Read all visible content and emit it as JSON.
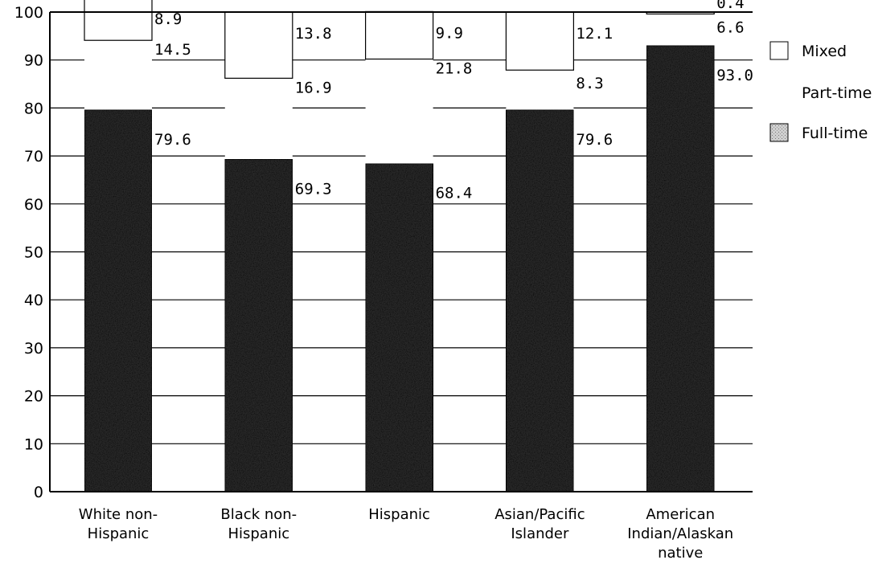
{
  "chart_data": {
    "type": "bar",
    "stacked": true,
    "categories": [
      [
        "White non-",
        "Hispanic"
      ],
      [
        "Black non-",
        "Hispanic"
      ],
      [
        "Hispanic"
      ],
      [
        "Asian/Pacific",
        "Islander"
      ],
      [
        "American",
        "Indian/Alaskan",
        "native"
      ]
    ],
    "series": [
      {
        "name": "Full-time",
        "values": [
          79.6,
          69.3,
          68.4,
          79.6,
          93.0
        ],
        "labels": [
          "79.6",
          "69.3",
          "68.4",
          "79.6",
          "93.0"
        ],
        "fill": "dark-speckled"
      },
      {
        "name": "Part-time",
        "values": [
          14.5,
          16.9,
          21.8,
          8.3,
          6.6
        ],
        "labels": [
          "14.5",
          "16.9",
          "21.8",
          "8.3",
          "6.6"
        ],
        "fill": "white-no-border"
      },
      {
        "name": "Mixed",
        "values": [
          8.9,
          13.8,
          9.9,
          12.1,
          0.4
        ],
        "labels": [
          "8.9",
          "13.8",
          "9.9",
          "12.1",
          "0.4"
        ],
        "fill": "white-outlined"
      }
    ],
    "legend_order": [
      "Mixed",
      "Part-time",
      "Full-time"
    ],
    "legend_position": "right",
    "ylim": [
      0,
      100
    ],
    "yticks": [
      0,
      10,
      20,
      30,
      40,
      50,
      60,
      70,
      80,
      90,
      100
    ],
    "grid": true,
    "title": "",
    "xlabel": "",
    "ylabel": ""
  }
}
